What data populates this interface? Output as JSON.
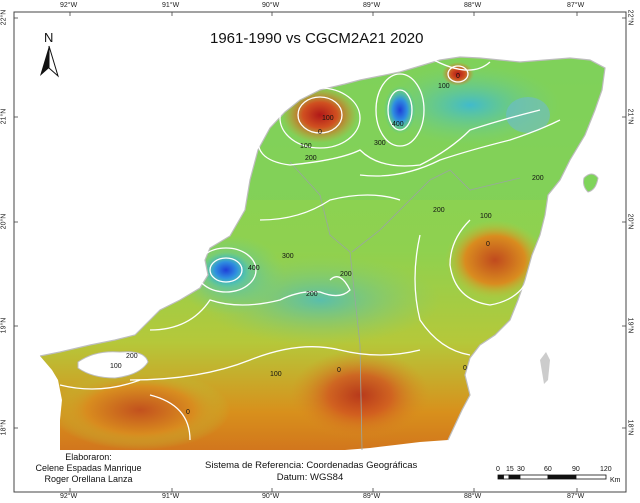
{
  "title": "1961-1990 vs CGCM2A21 2020",
  "north_label": "N",
  "credits": {
    "heading": "Elaboraron:",
    "author1": "Celene Espadas Manrique",
    "author2": "Roger Orellana Lanza"
  },
  "reference": {
    "line1": "Sistema de Referencia: Coordenadas Geográficas",
    "line2": "Datum: WGS84"
  },
  "longitude_ticks": [
    "92°W",
    "91°W",
    "90°W",
    "89°W",
    "88°W",
    "87°W"
  ],
  "latitude_ticks": [
    "22°N",
    "21°N",
    "20°N",
    "19°N",
    "18°N"
  ],
  "scale": {
    "labels": [
      "0",
      "15",
      "30",
      "60",
      "90",
      "120"
    ],
    "unit": "Km"
  },
  "contour_labels": {
    "zero": "0",
    "c100": "100",
    "c200": "200",
    "c300": "300",
    "c400": "400"
  },
  "colors": {
    "high": "#c0392b",
    "mid_high": "#d98c1f",
    "mid": "#8fd14f",
    "low": "#3fd0b0",
    "lowest": "#1e4fd8",
    "contour": "#ffffff"
  }
}
